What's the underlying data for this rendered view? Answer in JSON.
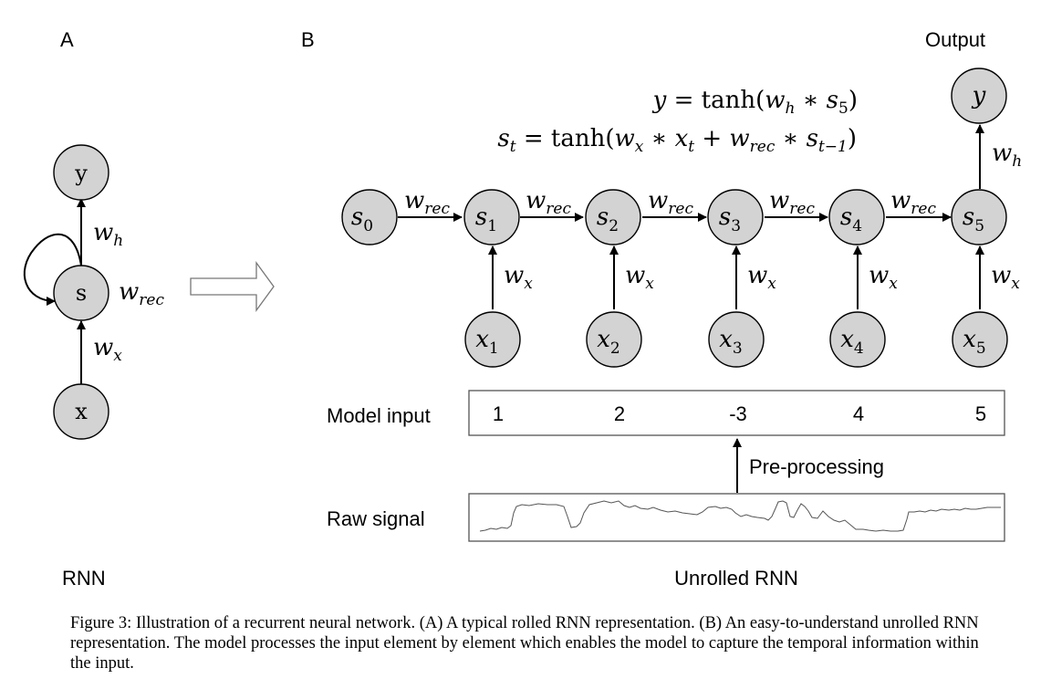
{
  "panel_a": {
    "letter": "A",
    "title": "RNN",
    "nodes": {
      "y": "y",
      "s": "s",
      "x": "x"
    },
    "edges": {
      "w_h": "w",
      "w_h_sub": "h",
      "w_rec": "w",
      "w_rec_sub": "rec",
      "w_x": "w",
      "w_x_sub": "x"
    }
  },
  "panel_b": {
    "letter": "B",
    "title": "Unrolled RNN",
    "output_label": "Output",
    "equation_y": "y = tanh(w_h * s_5)",
    "equation_s": "s_t = tanh(w_x * x_t + w_rec * s_{t-1})",
    "output_node": "y",
    "state_nodes": [
      {
        "base": "s",
        "sub": "0"
      },
      {
        "base": "s",
        "sub": "1"
      },
      {
        "base": "s",
        "sub": "2"
      },
      {
        "base": "s",
        "sub": "3"
      },
      {
        "base": "s",
        "sub": "4"
      },
      {
        "base": "s",
        "sub": "5"
      }
    ],
    "input_nodes": [
      {
        "base": "x",
        "sub": "1"
      },
      {
        "base": "x",
        "sub": "2"
      },
      {
        "base": "x",
        "sub": "3"
      },
      {
        "base": "x",
        "sub": "4"
      },
      {
        "base": "x",
        "sub": "5"
      }
    ],
    "recurrent_weight": {
      "base": "w",
      "sub": "rec"
    },
    "input_weight": {
      "base": "w",
      "sub": "x"
    },
    "output_weight": {
      "base": "w",
      "sub": "h"
    },
    "model_input_label": "Model input",
    "model_input_values": [
      "1",
      "2",
      "-3",
      "4",
      "5"
    ],
    "preprocessing_label": "Pre-processing",
    "raw_signal_label": "Raw signal"
  },
  "caption": "Figure 3: Illustration of a recurrent neural network. (A) A typical rolled RNN representation. (B) An easy-to-understand unrolled RNN representation. The model processes the input element by element which enables the model to capture the temporal information within the input."
}
